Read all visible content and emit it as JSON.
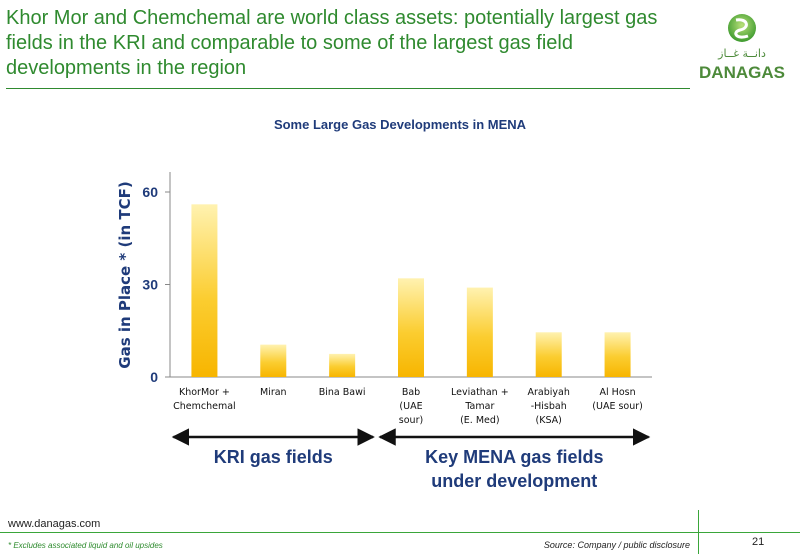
{
  "slide": {
    "title": "Khor Mor and Chemchemal are world class assets: potentially largest gas fields in the KRI and comparable to some of the largest gas field developments in the region",
    "logo_text_arabic": "دانــة غــاز",
    "logo_text": "DANAGAS",
    "website": "www.danagas.com",
    "footnote": "* Excludes associated liquid and oil upsides",
    "source": "Source: Company / public disclosure",
    "page_number": "21"
  },
  "colors": {
    "title_green": "#2f8a2f",
    "navy": "#1f3b7a",
    "bar_light": "#ffe680",
    "bar_dark": "#f7b500"
  },
  "chart_data": {
    "type": "bar",
    "title": "Some Large Gas Developments in MENA",
    "ylabel": "Gas in Place * (in TCF)",
    "xlabel": "",
    "ylim": [
      0,
      60
    ],
    "yticks": [
      "0",
      "30",
      "60"
    ],
    "grid": false,
    "categories": [
      [
        "KhorMor +",
        "Chemchemal"
      ],
      [
        "Miran"
      ],
      [
        "Bina Bawi"
      ],
      [
        "Bab",
        "(UAE",
        "sour)"
      ],
      [
        "Leviathan +",
        "Tamar",
        "(E. Med)"
      ],
      [
        "Arabiyah",
        "-Hisbah",
        "(KSA)"
      ],
      [
        "Al Hosn",
        "(UAE sour)"
      ]
    ],
    "values": [
      56,
      10.5,
      7.5,
      32,
      29,
      14.5,
      14.5
    ],
    "groups": [
      {
        "label": "KRI gas fields",
        "from": 0,
        "to": 2
      },
      {
        "label": "Key MENA gas fields under development",
        "label_lines": [
          "Key MENA gas fields",
          "under development"
        ],
        "from": 3,
        "to": 6
      }
    ]
  }
}
